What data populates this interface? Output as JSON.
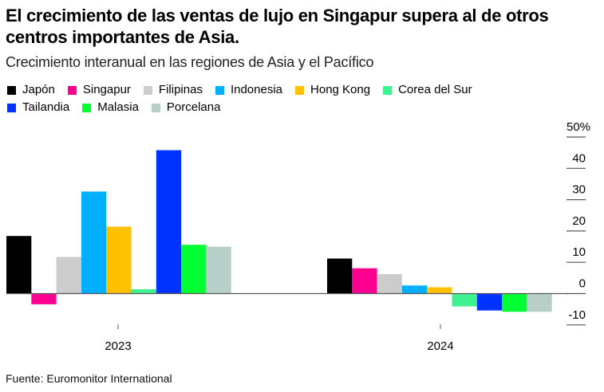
{
  "header": {
    "title": "El crecimiento de las ventas de lujo en Singapur supera al de otros centros importantes de Asia.",
    "subtitle": "Crecimiento interanual en las regiones de Asia y el Pacífico"
  },
  "footer": {
    "source": "Fuente: Euromonitor International"
  },
  "chart_data": {
    "type": "bar",
    "title": "El crecimiento de las ventas de lujo en Singapur supera al de otros centros importantes de Asia.",
    "subtitle": "Crecimiento interanual en las regiones de Asia y el Pacífico",
    "xlabel": "",
    "ylabel": "",
    "categories": [
      "2023",
      "2024"
    ],
    "ylim": [
      -10,
      50
    ],
    "yticks": [
      50,
      40,
      30,
      20,
      10,
      0,
      -10
    ],
    "ytick_labels": [
      "50%",
      "40",
      "30",
      "20",
      "10",
      "0",
      "-10"
    ],
    "y_axis_side": "right",
    "grid": false,
    "legend_position": "top-left",
    "series": [
      {
        "name": "Japón",
        "color": "#000000",
        "values": [
          18.4,
          11.2
        ]
      },
      {
        "name": "Singapur",
        "color": "#ff0090",
        "values": [
          -3.4,
          8.1
        ]
      },
      {
        "name": "Filipinas",
        "color": "#cccccc",
        "values": [
          11.7,
          6.2
        ]
      },
      {
        "name": "Indonesia",
        "color": "#00b0ff",
        "values": [
          32.6,
          2.6
        ]
      },
      {
        "name": "Hong Kong",
        "color": "#ffc000",
        "values": [
          21.4,
          2.0
        ]
      },
      {
        "name": "Corea del Sur",
        "color": "#3ff28f",
        "values": [
          1.4,
          -4.1
        ]
      },
      {
        "name": "Tailandia",
        "color": "#0033ff",
        "values": [
          45.8,
          -5.4
        ]
      },
      {
        "name": "Malasia",
        "color": "#00ff33",
        "values": [
          15.6,
          -5.8
        ]
      },
      {
        "name": "Porcelana",
        "color": "#b7cfc8",
        "values": [
          15.0,
          -5.8
        ]
      }
    ]
  }
}
